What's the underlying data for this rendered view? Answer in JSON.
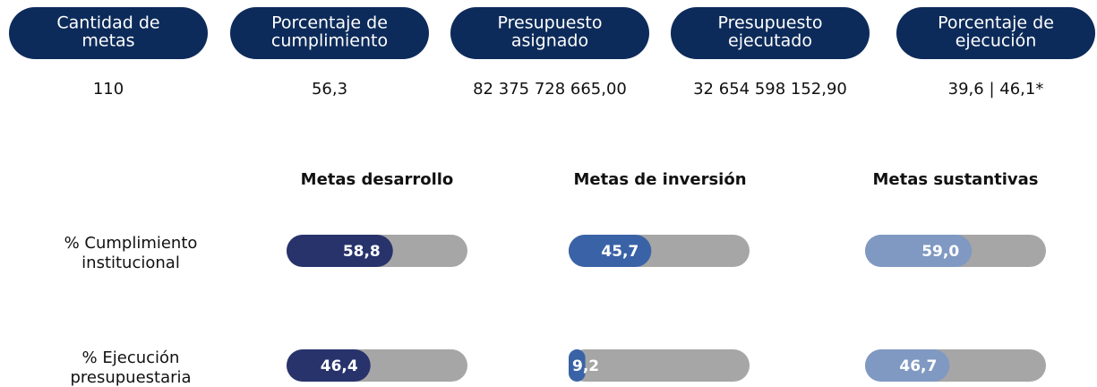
{
  "indicators": [
    {
      "label": [
        "Cantidad de",
        "metas"
      ],
      "value": "110"
    },
    {
      "label": [
        "Porcentaje de",
        "cumplimiento"
      ],
      "value": "56,3"
    },
    {
      "label": [
        "Presupuesto",
        "asignado"
      ],
      "value": "82 375 728 665,00"
    },
    {
      "label": [
        "Presupuesto",
        "ejecutado"
      ],
      "value": "32 654 598 152,90"
    },
    {
      "label": [
        "Porcentaje de",
        "ejecución"
      ],
      "value": "39,6 | 46,1*"
    }
  ],
  "progress": {
    "xlim": [
      0,
      100
    ],
    "columns": [
      {
        "name": "Metas desarrollo",
        "color": "#28336c"
      },
      {
        "name": "Metas de inversión",
        "color": "#3a62a6"
      },
      {
        "name": "Metas sustantivas",
        "color": "#8099c2"
      }
    ],
    "rows": [
      {
        "label": [
          "% Cumplimiento",
          "institucional"
        ],
        "values": [
          {
            "value": 58.8,
            "label": "58,8"
          },
          {
            "value": 45.7,
            "label": "45,7"
          },
          {
            "value": 59.0,
            "label": "59,0"
          }
        ]
      },
      {
        "label": [
          "% Ejecución",
          "presupuestaria"
        ],
        "values": [
          {
            "value": 46.4,
            "label": "46,4"
          },
          {
            "value": 9.2,
            "label": "9,2"
          },
          {
            "value": 46.7,
            "label": "46,7"
          }
        ]
      }
    ]
  }
}
